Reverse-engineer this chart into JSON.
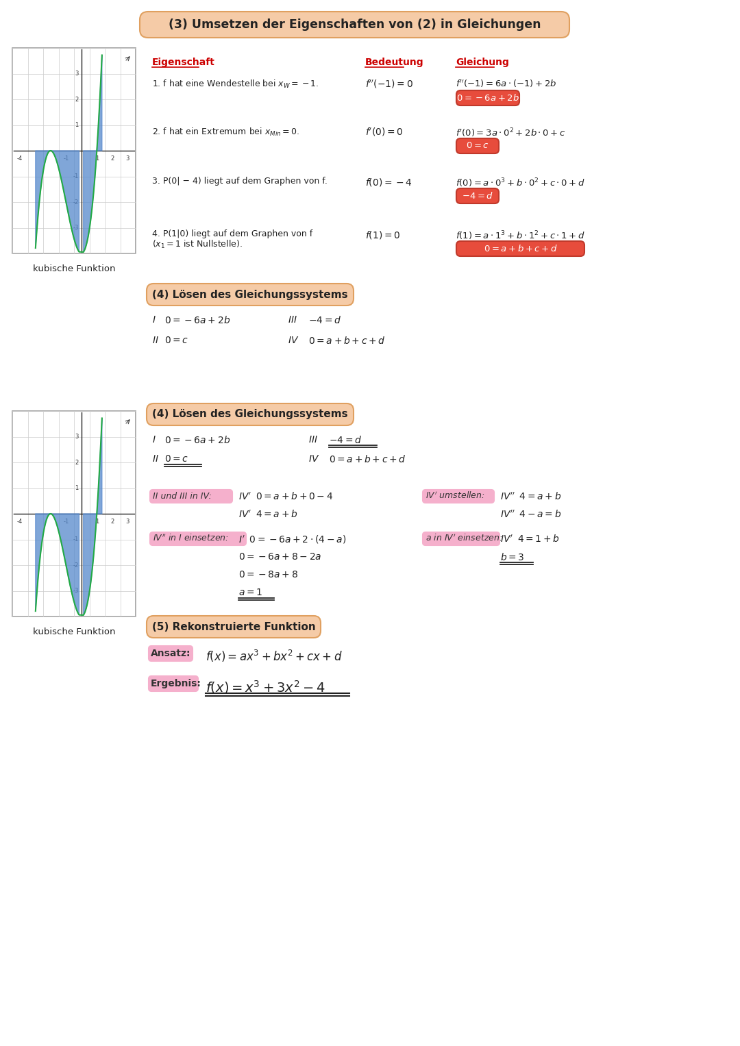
{
  "bg_color": "#ffffff",
  "title3": "(3) Umsetzen der Eigenschaften von (2) in Gleichungen",
  "title3_bg": "#f5cba7",
  "title4a": "(4) Lösen des Gleichungssystems",
  "title4b": "(4) Lösen des Gleichungssystems",
  "title5": "(5) Rekonstruierte Funktion",
  "col_headers": [
    "Eigenschaft",
    "Bedeutung",
    "Gleichung"
  ],
  "col_header_color": "#cc0000",
  "rows": [
    {
      "eigenschaft_line1": "1. f hat eine Wendestelle bei $x_W = -1$.",
      "eigenschaft_line2": "",
      "bedeutung": "$f''(-1) = 0$",
      "gleichung_line1": "$f''(-1) = 6a \\cdot (-1) + 2b$",
      "gleichung_box": "$0 = -6a + 2b$"
    },
    {
      "eigenschaft_line1": "2. f hat ein Extremum bei $x_{Min} = 0$.",
      "eigenschaft_line2": "",
      "bedeutung": "$f'(0) = 0$",
      "gleichung_line1": "$f'(0) = 3a \\cdot 0^2 + 2b \\cdot 0 + c$",
      "gleichung_box": "$0 = c$"
    },
    {
      "eigenschaft_line1": "3. P(0| − 4) liegt auf dem Graphen von f.",
      "eigenschaft_line2": "",
      "bedeutung": "$f(0) = -4$",
      "gleichung_line1": "$f(0) = a \\cdot 0^3 + b \\cdot 0^2 + c \\cdot 0 + d$",
      "gleichung_box": "$-4 = d$"
    },
    {
      "eigenschaft_line1": "4. P(1|0) liegt auf dem Graphen von f",
      "eigenschaft_line2": "$(x_1 = 1$ ist Nullstelle).",
      "bedeutung": "$f(1) = 0$",
      "gleichung_line1": "$f(1) = a \\cdot 1^3 + b \\cdot 1^2 + c \\cdot 1 + d$",
      "gleichung_box": "$0 = a + b + c + d$"
    }
  ],
  "box_color": "#e74c3c",
  "sys4a_I": "$0 = -6a + 2b$",
  "sys4a_II": "$0 = c$",
  "sys4a_III": "$-4 = d$",
  "sys4a_IV": "$0 = a + b + c + d$",
  "step_label_bg": "#f5b8cc",
  "step_label_bg2": "#f5b8d0",
  "kubische_text": "kubische Funktion",
  "ansatz_label": "Ansatz:",
  "ansatz_formula": "$f(x) = ax^3 + bx^2 + cx + d$",
  "ergebnis_label": "Ergebnis:",
  "ergebnis_formula": "$f(x) = x^3 + 3x^2 - 4$"
}
